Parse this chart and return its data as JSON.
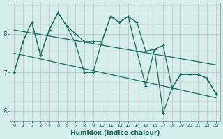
{
  "xlabel": "Humidex (Indice chaleur)",
  "background_color": "#d4eeec",
  "grid_color_h": "#c0d8d6",
  "grid_color_v": "#e8b8b8",
  "line_color": "#1a6b5a",
  "y_line1": [
    7.0,
    7.8,
    8.3,
    7.45,
    8.1,
    8.55,
    8.2,
    8.0,
    7.8,
    7.8,
    7.8,
    8.45,
    8.3,
    8.45,
    8.3,
    7.55,
    7.6,
    7.7,
    6.6,
    6.95,
    6.95,
    6.95,
    6.85,
    6.45
  ],
  "y_line2": [
    7.0,
    7.8,
    8.3,
    7.45,
    8.1,
    8.55,
    8.2,
    7.75,
    7.0,
    7.0,
    7.8,
    8.45,
    8.3,
    8.45,
    7.55,
    6.65,
    7.6,
    5.95,
    6.6,
    6.95,
    6.95,
    6.95,
    6.85,
    6.45
  ],
  "trend1_x": [
    0,
    23
  ],
  "trend1_y": [
    8.1,
    7.2
  ],
  "trend2_x": [
    0,
    23
  ],
  "trend2_y": [
    7.5,
    6.35
  ],
  "xlim": [
    -0.5,
    23.5
  ],
  "ylim": [
    5.75,
    8.8
  ],
  "yticks": [
    6,
    7,
    8
  ],
  "xticks": [
    0,
    1,
    2,
    3,
    4,
    5,
    6,
    7,
    8,
    9,
    10,
    11,
    12,
    13,
    14,
    15,
    16,
    17,
    18,
    19,
    20,
    21,
    22,
    23
  ],
  "figsize": [
    3.2,
    2.0
  ],
  "dpi": 100
}
